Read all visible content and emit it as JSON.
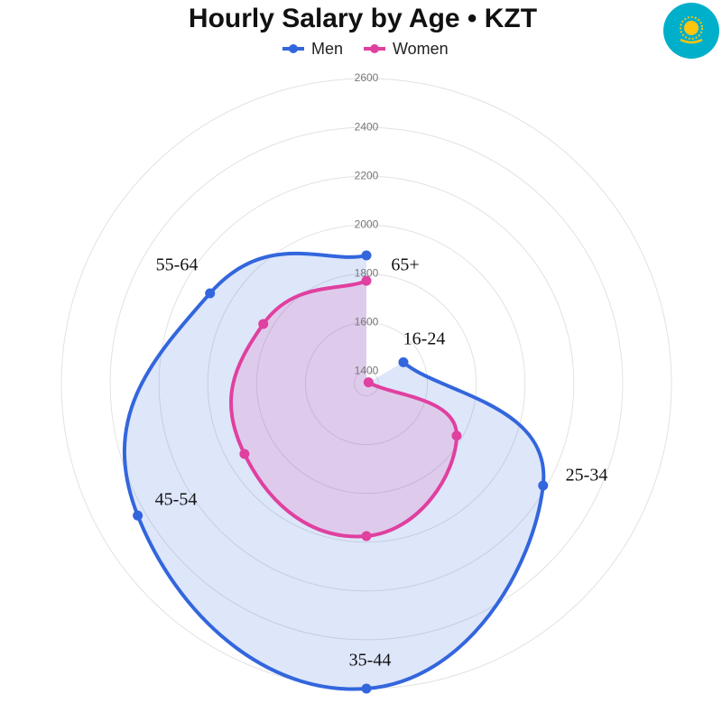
{
  "chart_data": {
    "type": "radar",
    "title": "Hourly Salary by Age • KZT",
    "categories": [
      "16-24",
      "25-34",
      "35-44",
      "45-54",
      "55-64",
      "65+"
    ],
    "series": [
      {
        "name": "Men",
        "color": "#3366dd",
        "values": [
          1525,
          2186,
          2600,
          2432,
          2090,
          1875
        ]
      },
      {
        "name": "Women",
        "color": "#e040a0",
        "values": [
          1360,
          1777,
          1975,
          1927,
          1838,
          1771
        ]
      }
    ],
    "rlim": [
      1350,
      2600
    ],
    "rticks": [
      1400,
      1600,
      1800,
      2000,
      2200,
      2400,
      2600
    ],
    "grid": true
  }
}
